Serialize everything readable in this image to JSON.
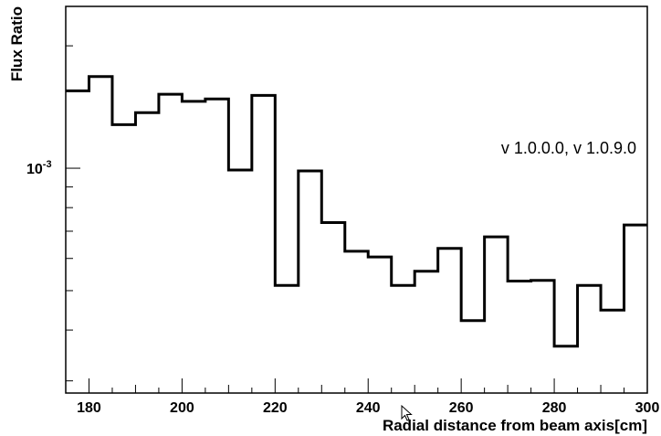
{
  "chart_data": {
    "type": "line",
    "style": "histogram-step",
    "xlabel": "Radial distance from beam axis[cm]",
    "ylabel": "Flux Ratio",
    "xlim": [
      175,
      300
    ],
    "ylim": [
      0.00028,
      0.0025
    ],
    "yscale": "log",
    "grid": false,
    "bin_edges": [
      175,
      180,
      185,
      190,
      195,
      200,
      205,
      210,
      215,
      220,
      225,
      230,
      235,
      240,
      245,
      250,
      255,
      260,
      265,
      270,
      275,
      280,
      285,
      290,
      295,
      300
    ],
    "values": [
      0.00155,
      0.00168,
      0.00128,
      0.00137,
      0.00152,
      0.00146,
      0.00148,
      0.00099,
      0.00151,
      0.000515,
      0.000985,
      0.000735,
      0.000625,
      0.000605,
      0.000515,
      0.000558,
      0.000635,
      0.000422,
      0.000678,
      0.000528,
      0.00053,
      0.000365,
      0.000515,
      0.000448,
      0.000725
    ],
    "x_ticks": [
      "180",
      "200",
      "220",
      "240",
      "260",
      "280",
      "300"
    ],
    "x_tick_values": [
      180,
      200,
      220,
      240,
      260,
      280,
      300
    ],
    "y_tick_labels": [
      {
        "base": "10",
        "exp": "-3",
        "value": 0.001
      }
    ],
    "annotation": "v 1.0.0.0, v 1.0.9.0",
    "line_color": "#000000"
  }
}
